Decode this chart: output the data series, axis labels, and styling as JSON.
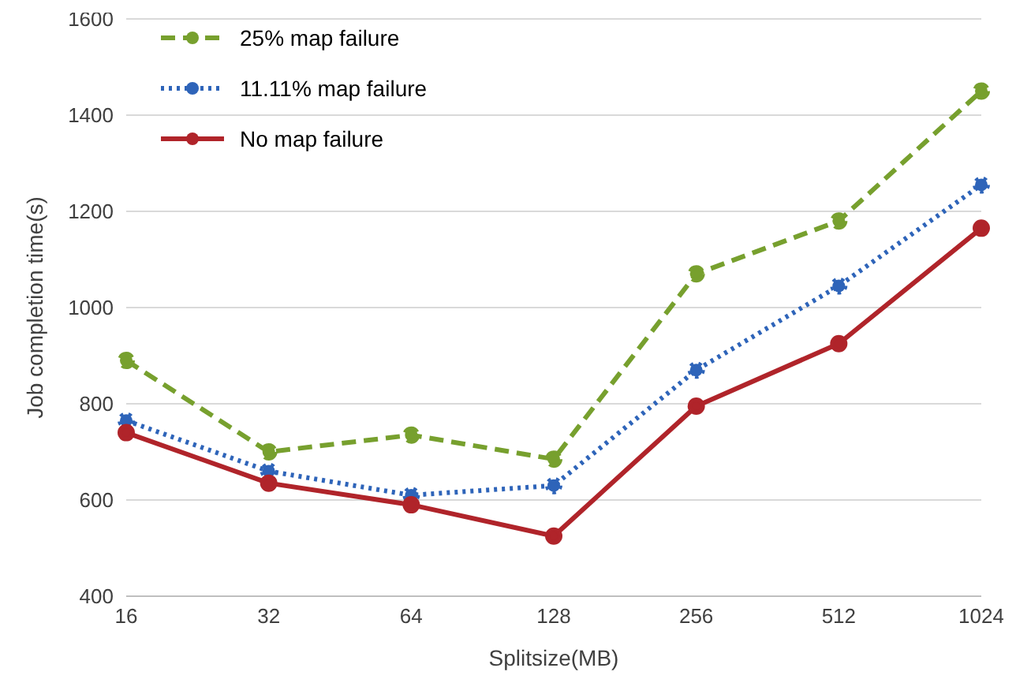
{
  "chart_data": {
    "type": "line",
    "xlabel": "Splitsize(MB)",
    "ylabel": "Job completion time(s)",
    "categories": [
      "16",
      "32",
      "64",
      "128",
      "256",
      "512",
      "1024"
    ],
    "series": [
      {
        "name": "25% map failure",
        "color": "#77a02e",
        "line_style": "dashed",
        "values": [
          890,
          700,
          735,
          685,
          1070,
          1180,
          1450
        ]
      },
      {
        "name": "11.11% map failure",
        "color": "#2e64b9",
        "line_style": "dotted",
        "values": [
          765,
          660,
          610,
          630,
          870,
          1045,
          1255
        ]
      },
      {
        "name": "No map failure",
        "color": "#b0242a",
        "line_style": "solid",
        "values": [
          740,
          635,
          590,
          525,
          795,
          925,
          1165
        ]
      }
    ],
    "ylim": [
      400,
      1600
    ],
    "yticks": [
      400,
      600,
      800,
      1000,
      1200,
      1400,
      1600
    ],
    "grid": "y",
    "legend": "top left",
    "marker": "circle"
  }
}
